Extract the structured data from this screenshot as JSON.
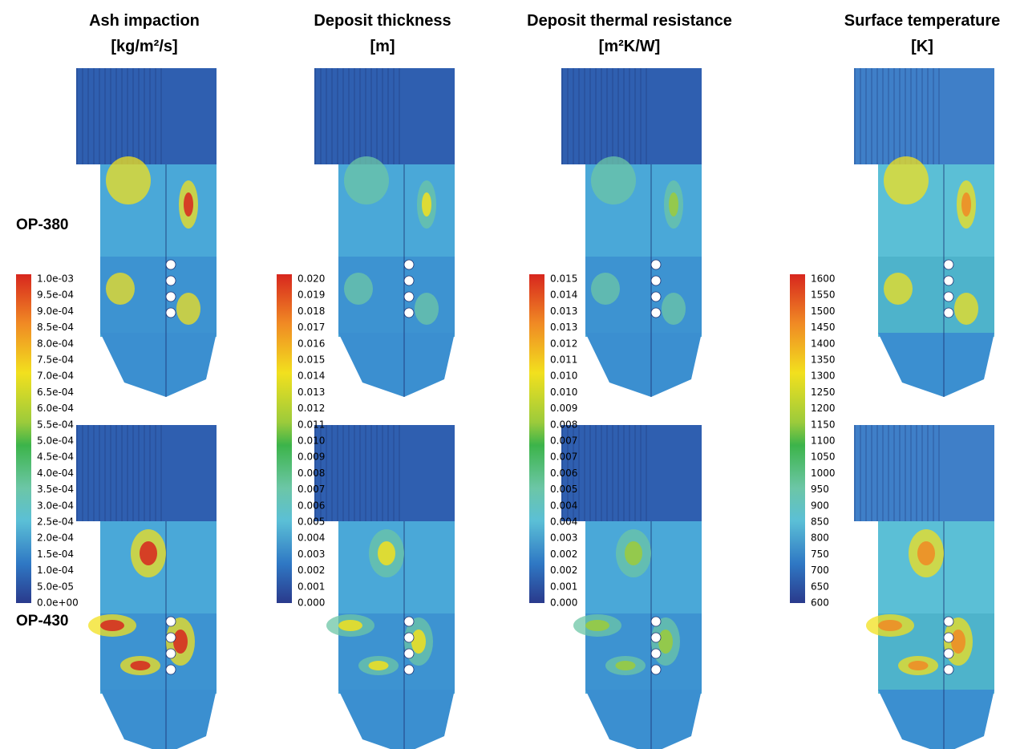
{
  "columns": [
    {
      "title": "Ash impaction",
      "unit": "[kg/m²/s]",
      "colorbar": [
        "1.0e-03",
        "9.5e-04",
        "9.0e-04",
        "8.5e-04",
        "8.0e-04",
        "7.5e-04",
        "7.0e-04",
        "6.5e-04",
        "6.0e-04",
        "5.5e-04",
        "5.0e-04",
        "4.5e-04",
        "4.0e-04",
        "3.5e-04",
        "3.0e-04",
        "2.5e-04",
        "2.0e-04",
        "1.5e-04",
        "1.0e-04",
        "5.0e-05",
        "0.0e+00"
      ]
    },
    {
      "title": "Deposit thickness",
      "unit": "[m]",
      "colorbar": [
        "0.020",
        "0.019",
        "0.018",
        "0.017",
        "0.016",
        "0.015",
        "0.014",
        "0.013",
        "0.012",
        "0.011",
        "0.010",
        "0.009",
        "0.008",
        "0.007",
        "0.006",
        "0.005",
        "0.004",
        "0.003",
        "0.002",
        "0.001",
        "0.000"
      ]
    },
    {
      "title": "Deposit thermal resistance",
      "unit": "[m²K/W]",
      "colorbar": [
        "0.015",
        "0.014",
        "0.013",
        "0.013",
        "0.012",
        "0.011",
        "0.010",
        "0.010",
        "0.009",
        "0.008",
        "0.007",
        "0.007",
        "0.006",
        "0.005",
        "0.004",
        "0.004",
        "0.003",
        "0.002",
        "0.002",
        "0.001",
        "0.000"
      ]
    },
    {
      "title": "Surface temperature",
      "unit": "[K]",
      "colorbar": [
        "1600",
        "1550",
        "1500",
        "1450",
        "1400",
        "1350",
        "1300",
        "1250",
        "1200",
        "1150",
        "1100",
        "1050",
        "1000",
        "950",
        "900",
        "850",
        "800",
        "750",
        "700",
        "650",
        "600"
      ]
    }
  ],
  "rows": [
    "OP-380",
    "OP-430"
  ]
}
